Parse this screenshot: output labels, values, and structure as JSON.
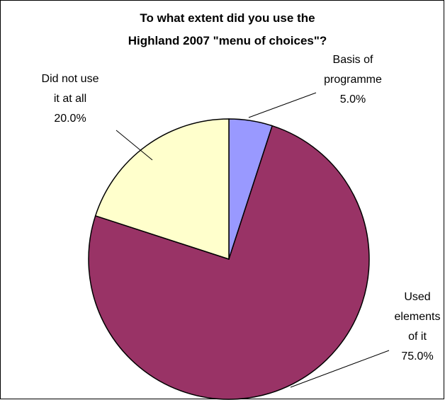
{
  "chart_data": {
    "type": "pie",
    "title_lines": [
      "To what extent did you use the",
      "Highland 2007 \"menu of choices\"?"
    ],
    "slices": [
      {
        "label_lines": [
          "Basis of",
          "programme",
          "5.0%"
        ],
        "value": 5.0,
        "color": "#9999ff"
      },
      {
        "label_lines": [
          "Used",
          "elements",
          "of it",
          "75.0%"
        ],
        "value": 75.0,
        "color": "#993366"
      },
      {
        "label_lines": [
          "Did not use",
          "it at all",
          "20.0%"
        ],
        "value": 20.0,
        "color": "#ffffcc"
      }
    ],
    "start_angle_deg": 0,
    "direction": "clockwise",
    "legend": "none"
  }
}
